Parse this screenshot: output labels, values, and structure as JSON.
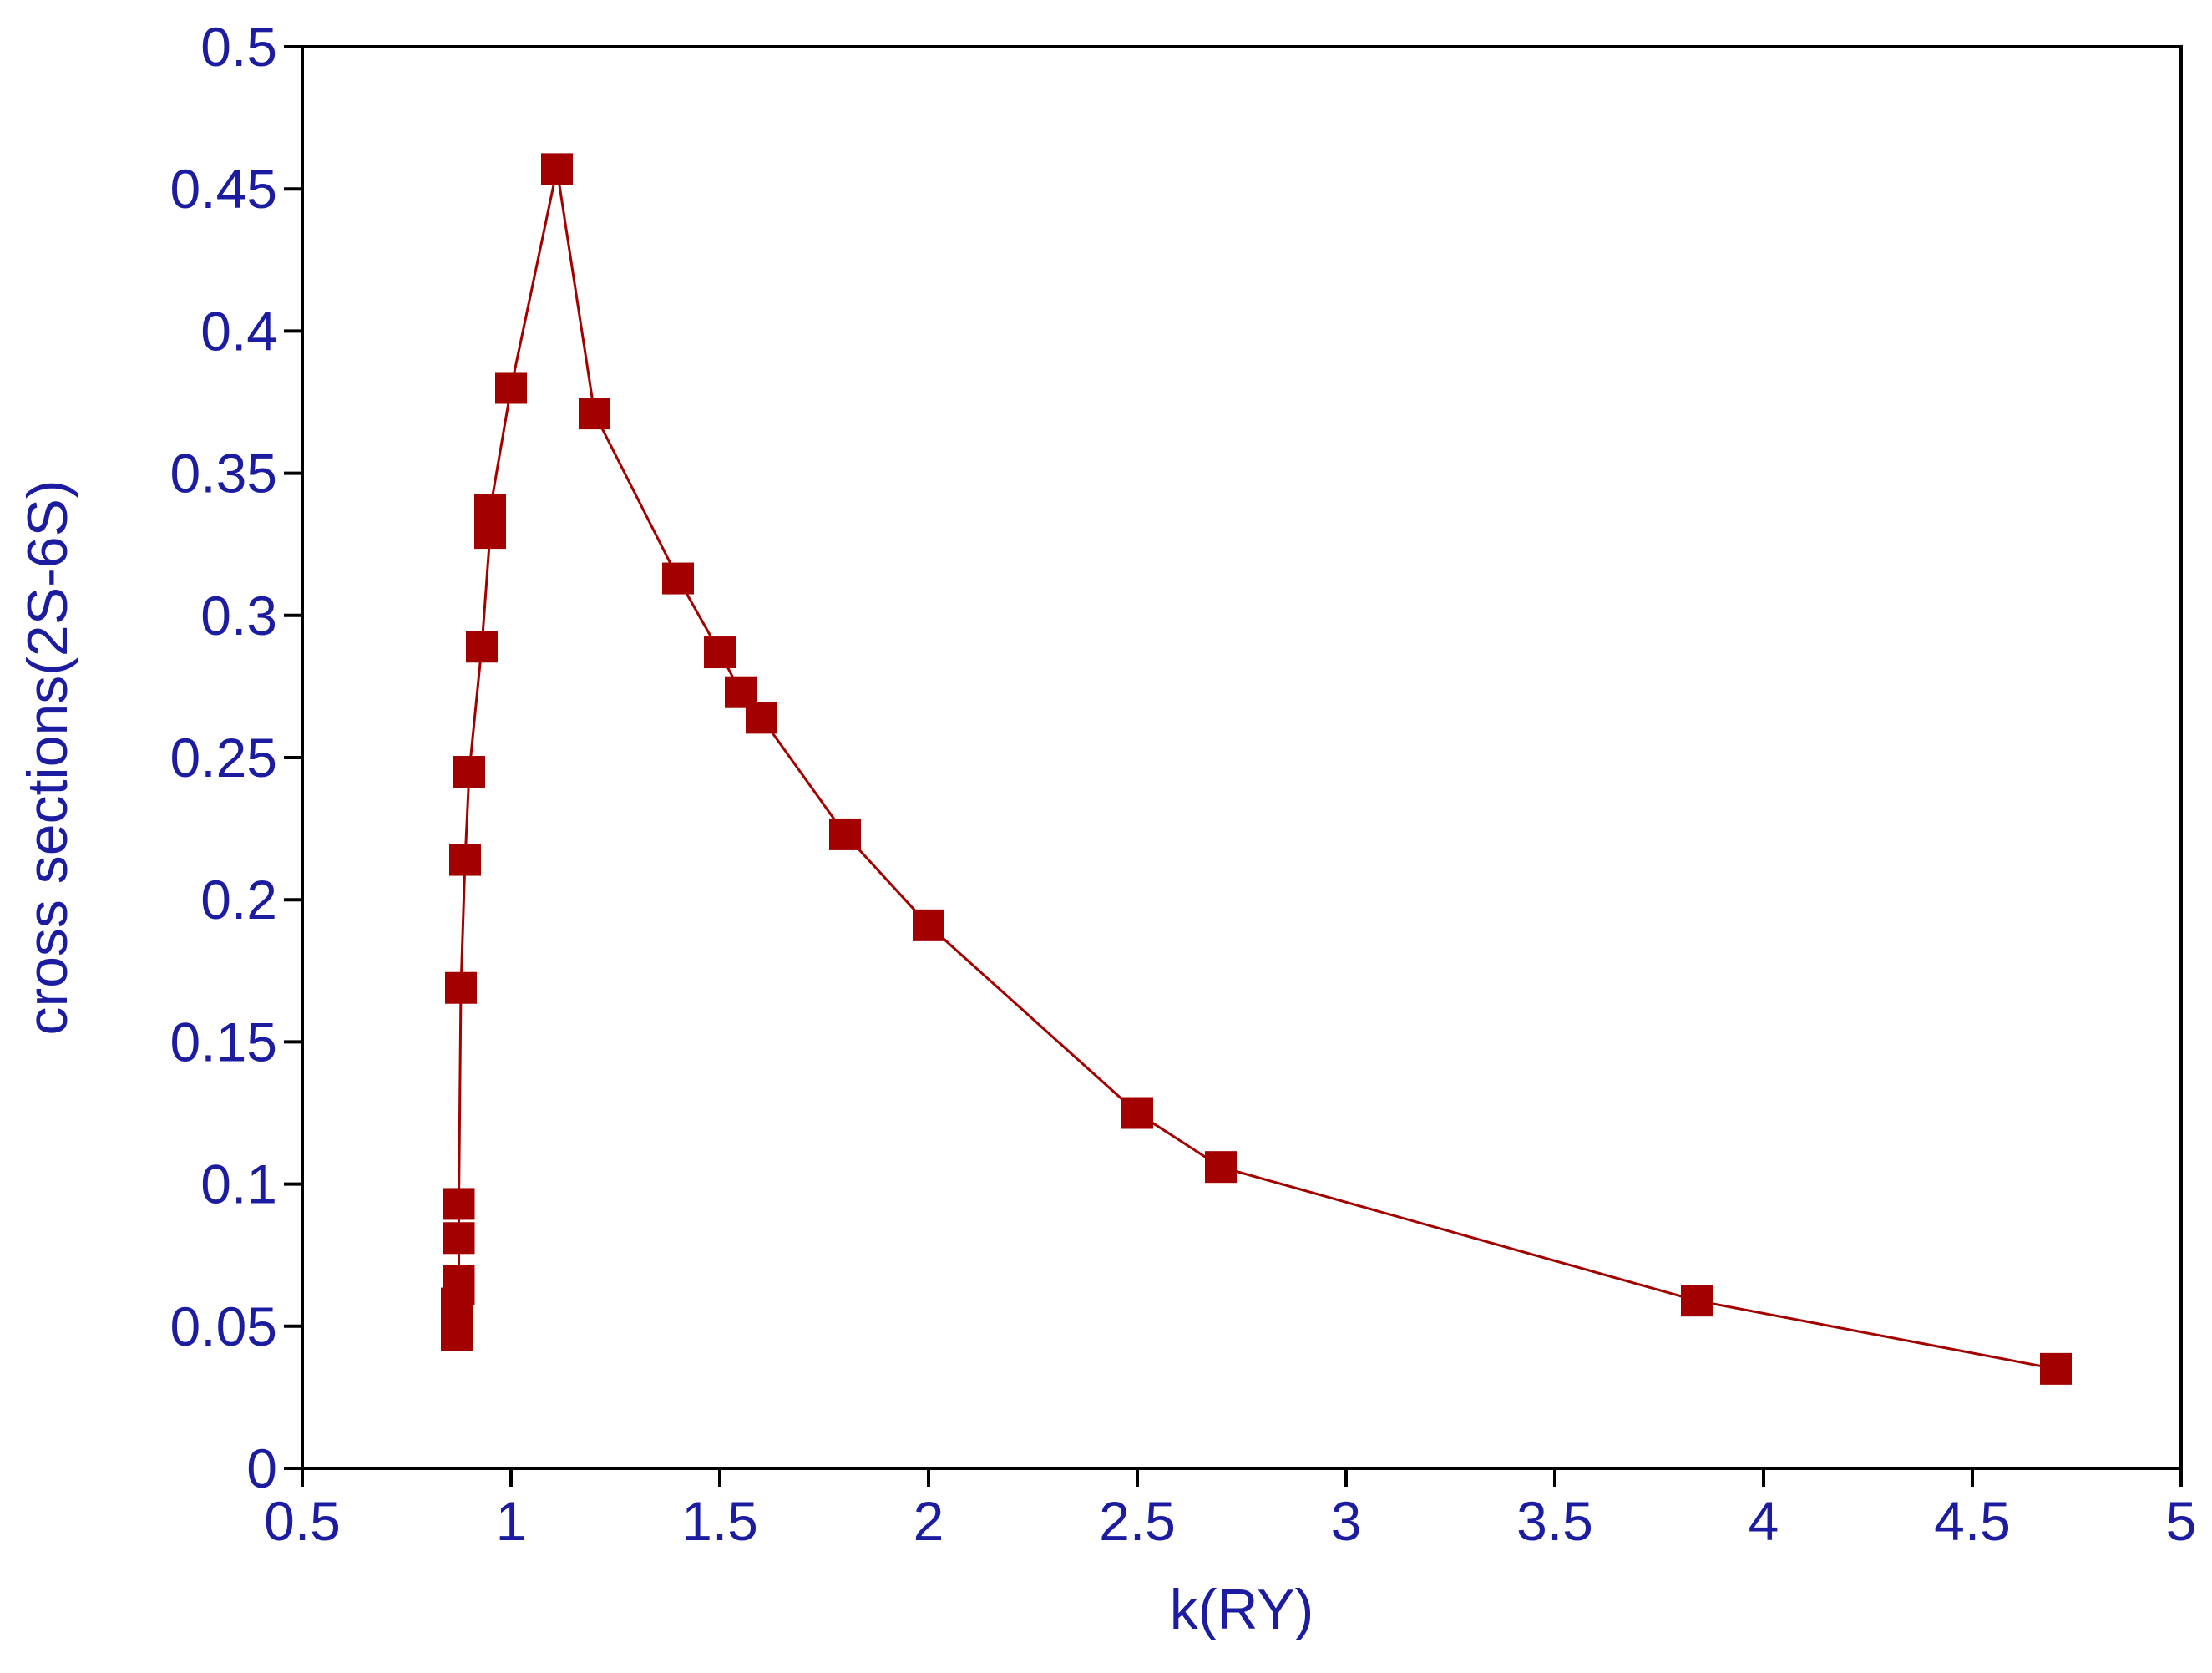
{
  "chart_data": {
    "type": "line",
    "title": "",
    "xlabel": "k(RY)",
    "ylabel": "cross sections(2S-6S)",
    "xlim": [
      0.5,
      5
    ],
    "ylim": [
      0,
      0.5
    ],
    "x_ticks": [
      0.5,
      1,
      1.5,
      2,
      2.5,
      3,
      3.5,
      4,
      4.5,
      5
    ],
    "x_tick_labels": [
      "0.5",
      "1",
      "1.5",
      "2",
      "2.5",
      "3",
      "3.5",
      "4",
      "4.5",
      "5"
    ],
    "y_ticks": [
      0,
      0.05,
      0.1,
      0.15,
      0.2,
      0.25,
      0.3,
      0.35,
      0.4,
      0.45,
      0.5
    ],
    "y_tick_labels": [
      "0",
      "0.05",
      "0.1",
      "0.15",
      "0.2",
      "0.25",
      "0.3",
      "0.35",
      "0.4",
      "0.45",
      "0.5"
    ],
    "grid": false,
    "series": [
      {
        "name": "2S-6S",
        "marker": "square",
        "color": "#a30000",
        "x": [
          0.87,
          0.87,
          0.875,
          0.875,
          0.875,
          0.875,
          0.88,
          0.89,
          0.9,
          0.93,
          0.95,
          0.95,
          1.0,
          1.11,
          1.2,
          1.4,
          1.5,
          1.55,
          1.6,
          1.8,
          2.0,
          2.5,
          2.7,
          3.84,
          4.7
        ],
        "y": [
          0.047,
          0.058,
          0.063,
          0.066,
          0.081,
          0.093,
          0.169,
          0.214,
          0.245,
          0.289,
          0.329,
          0.337,
          0.38,
          0.457,
          0.371,
          0.313,
          0.287,
          0.273,
          0.264,
          0.223,
          0.191,
          0.125,
          0.106,
          0.059,
          0.035
        ]
      }
    ]
  },
  "colors": {
    "axis_text": "#1c1ca0",
    "axis_line": "#000000",
    "series": "#a30000"
  }
}
